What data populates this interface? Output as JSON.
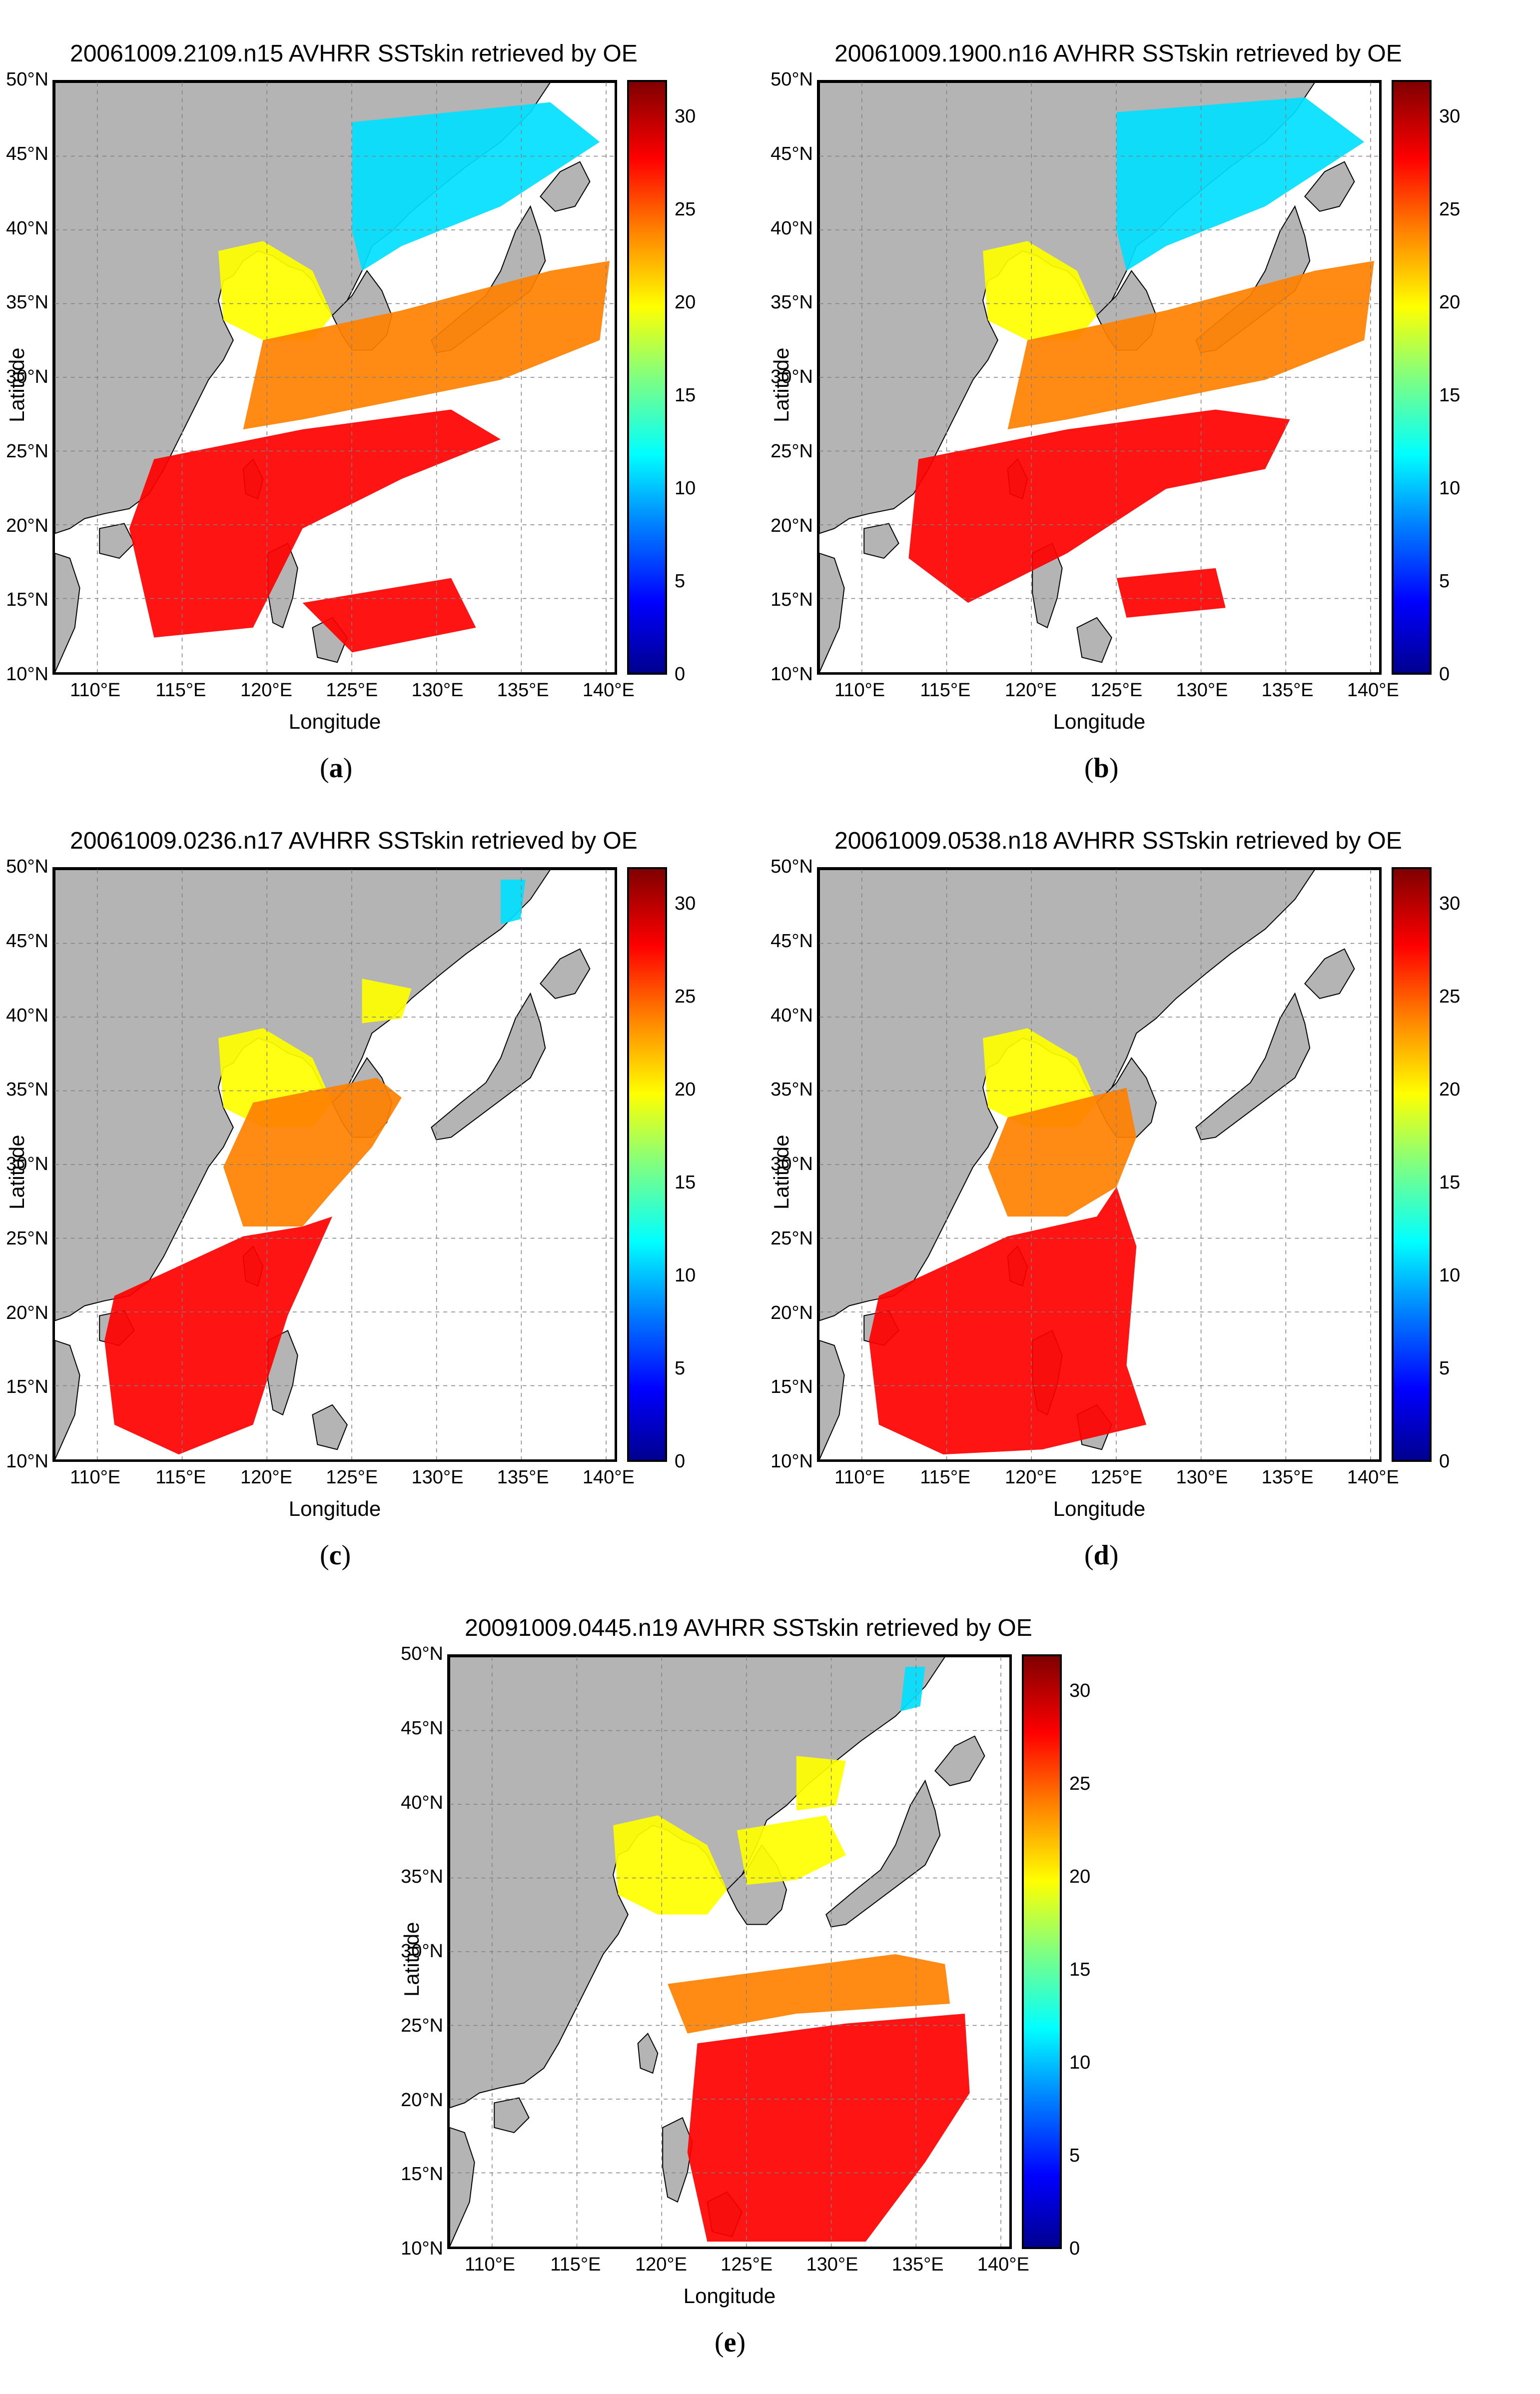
{
  "colorbar": {
    "ticks": [
      "0",
      "5",
      "10",
      "15",
      "20",
      "25",
      "30"
    ],
    "min": 0,
    "max": 32
  },
  "axes": {
    "lat_ticks": [
      "50°N",
      "45°N",
      "40°N",
      "35°N",
      "30°N",
      "25°N",
      "20°N",
      "15°N",
      "10°N"
    ],
    "lon_ticks": [
      "110°E",
      "115°E",
      "120°E",
      "125°E",
      "130°E",
      "135°E",
      "140°E"
    ],
    "ylabel": "Latitude",
    "xlabel": "Longitude"
  },
  "colors": {
    "land": "#b4b4b4",
    "grid": "#808080",
    "warm": "#ff0000",
    "mid": "#ff8000",
    "cool": "#ffff00",
    "cold": "#00e0ff"
  },
  "panels": [
    {
      "title": "20061009.2109.n15 AVHRR SSTskin retrieved by OE",
      "label_open": "(",
      "label": "a",
      "label_close": ")"
    },
    {
      "title": "20061009.1900.n16 AVHRR SSTskin retrieved by OE",
      "label_open": "(",
      "label": "b",
      "label_close": ")"
    },
    {
      "title": "20061009.0236.n17 AVHRR SSTskin retrieved by OE",
      "label_open": "(",
      "label": "c",
      "label_close": ")"
    },
    {
      "title": "20061009.0538.n18 AVHRR SSTskin retrieved by OE",
      "label_open": "(",
      "label": "d",
      "label_close": ")"
    },
    {
      "title": "20091009.0445.n19 AVHRR SSTskin retrieved by OE",
      "label_open": "(",
      "label": "e",
      "label_close": ")"
    }
  ]
}
